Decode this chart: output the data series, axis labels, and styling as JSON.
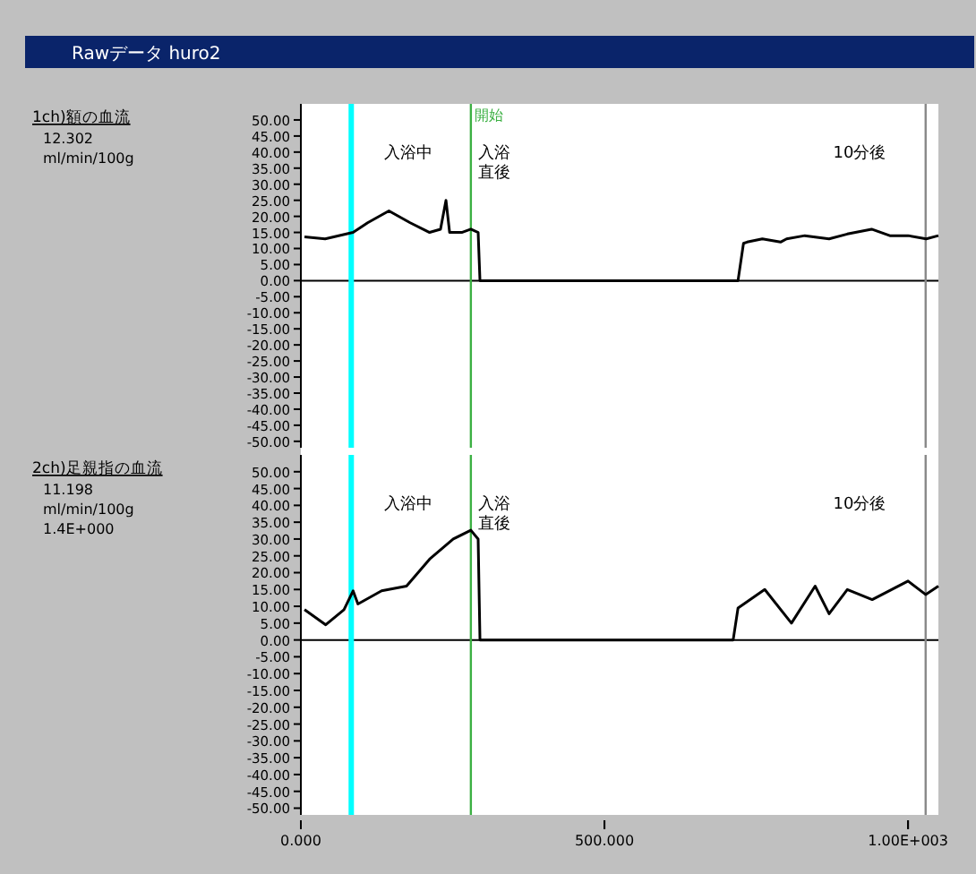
{
  "chart_data": [
    {
      "type": "line",
      "title": "Rawデータ huro2",
      "ylabel": "1ch)額の血流",
      "tick_labels": "y",
      "grid": false,
      "marker": "none",
      "line_style": "solid",
      "xlim": [
        0,
        1050
      ],
      "ylim": [
        -52,
        55
      ],
      "xticks": [
        {
          "value": 0,
          "label": null
        },
        {
          "value": 500,
          "label": null
        },
        {
          "value": 1000,
          "label": null
        }
      ],
      "yticks": [
        {
          "value": 50,
          "label": "50.00"
        },
        {
          "value": 45,
          "label": "45.00"
        },
        {
          "value": 40,
          "label": "40.00"
        },
        {
          "value": 35,
          "label": "35.00"
        },
        {
          "value": 30,
          "label": "30.00"
        },
        {
          "value": 25,
          "label": "25.00"
        },
        {
          "value": 20,
          "label": "20.00"
        },
        {
          "value": 15,
          "label": "15.00"
        },
        {
          "value": 10,
          "label": "10.00"
        },
        {
          "value": 5,
          "label": "5.00"
        },
        {
          "value": 0,
          "label": "0.00"
        },
        {
          "value": -5,
          "label": "-5.00"
        },
        {
          "value": -10,
          "label": "-10.00"
        },
        {
          "value": -15,
          "label": "-15.00"
        },
        {
          "value": -20,
          "label": "-20.00"
        },
        {
          "value": -25,
          "label": "-25.00"
        },
        {
          "value": -30,
          "label": "-30.00"
        },
        {
          "value": -35,
          "label": "-35.00"
        },
        {
          "value": -40,
          "label": "-40.00"
        },
        {
          "value": -45,
          "label": "-45.00"
        },
        {
          "value": -50,
          "label": "-50.00"
        }
      ],
      "series": [
        {
          "color": "#000000",
          "x": [
            6,
            40,
            86,
            110,
            145,
            180,
            212,
            230,
            239,
            245,
            251,
            265,
            280,
            292,
            295,
            400,
            500,
            600,
            720,
            729,
            735,
            760,
            790,
            800,
            830,
            870,
            900,
            940,
            970,
            1000,
            1030,
            1050
          ],
          "values": [
            13.6,
            13,
            15,
            18,
            21.7,
            18,
            15,
            16,
            25,
            15,
            15,
            15,
            16,
            15,
            0,
            0,
            0,
            0,
            0,
            11.6,
            12,
            13,
            12,
            13,
            14,
            13,
            14.5,
            16,
            14,
            14,
            13,
            14
          ]
        }
      ],
      "ref_lines": [
        {
          "axis": "y",
          "value": 0,
          "color": "#000000"
        },
        {
          "axis": "x",
          "value": 83,
          "color": "#00ffff"
        },
        {
          "axis": "x",
          "value": 280,
          "label": "開始",
          "color": "#3cb043"
        },
        {
          "axis": "x",
          "value": 1029,
          "color": "#888888"
        }
      ],
      "annotations": [
        "12.302",
        "ml/min/100g",
        "入浴中",
        "入浴直後",
        "10分後"
      ]
    },
    {
      "type": "line",
      "ylabel": "2ch)足親指の血流",
      "grid": false,
      "marker": "none",
      "line_style": "solid",
      "xlim": [
        0,
        1050
      ],
      "ylim": [
        -52,
        55
      ],
      "xticks": [
        {
          "value": 0,
          "label": "0.000"
        },
        {
          "value": 500,
          "label": "500.000"
        },
        {
          "value": 1000,
          "label": "1.00E+003"
        }
      ],
      "yticks": [
        {
          "value": 50,
          "label": "50.00"
        },
        {
          "value": 45,
          "label": "45.00"
        },
        {
          "value": 40,
          "label": "40.00"
        },
        {
          "value": 35,
          "label": "35.00"
        },
        {
          "value": 30,
          "label": "30.00"
        },
        {
          "value": 25,
          "label": "25.00"
        },
        {
          "value": 20,
          "label": "20.00"
        },
        {
          "value": 15,
          "label": "15.00"
        },
        {
          "value": 10,
          "label": "10.00"
        },
        {
          "value": 5,
          "label": "5.00"
        },
        {
          "value": 0,
          "label": "0.00"
        },
        {
          "value": -5,
          "label": "-5.00"
        },
        {
          "value": -10,
          "label": "-10.00"
        },
        {
          "value": -15,
          "label": "-15.00"
        },
        {
          "value": -20,
          "label": "-20.00"
        },
        {
          "value": -25,
          "label": "-25.00"
        },
        {
          "value": -30,
          "label": "-30.00"
        },
        {
          "value": -35,
          "label": "-35.00"
        },
        {
          "value": -40,
          "label": "-40.00"
        },
        {
          "value": -45,
          "label": "-45.00"
        },
        {
          "value": -50,
          "label": "-50.00"
        }
      ],
      "series": [
        {
          "color": "#000000",
          "x": [
            6,
            41,
            71,
            86,
            94,
            133,
            174,
            212,
            251,
            280,
            292,
            295,
            400,
            500,
            600,
            712,
            720,
            764,
            808,
            847,
            870,
            900,
            941,
            1000,
            1029,
            1050
          ],
          "values": [
            9,
            4.5,
            9,
            14.6,
            10.7,
            14.6,
            16,
            24,
            30,
            32.6,
            30,
            0,
            0,
            0,
            0,
            0,
            9.5,
            15,
            5,
            16,
            7.8,
            15,
            12,
            17.5,
            13.5,
            16
          ]
        }
      ],
      "ref_lines": [
        {
          "axis": "y",
          "value": 0,
          "color": "#000000"
        },
        {
          "axis": "x",
          "value": 83,
          "color": "#00ffff"
        },
        {
          "axis": "x",
          "value": 280,
          "color": "#3cb043"
        },
        {
          "axis": "x",
          "value": 1029,
          "color": "#888888"
        }
      ],
      "annotations": [
        "11.198",
        "ml/min/100g",
        "1.4E+000",
        "入浴中",
        "入浴直後",
        "10分後"
      ]
    }
  ]
}
